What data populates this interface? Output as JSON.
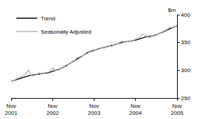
{
  "chart_data": {
    "type": "line",
    "y_label": "$m",
    "categories": [
      "Nov 2001",
      null,
      null,
      null,
      null,
      null,
      null,
      null,
      null,
      null,
      null,
      null,
      "Nov 2002",
      null,
      null,
      null,
      null,
      null,
      null,
      null,
      null,
      null,
      null,
      null,
      "Nov 2003",
      null,
      null,
      null,
      null,
      null,
      null,
      null,
      null,
      null,
      null,
      null,
      "Nov 2004",
      null,
      null,
      null,
      null,
      null,
      null,
      null,
      null,
      null,
      null,
      null,
      "Nov 2005"
    ],
    "series": [
      {
        "name": "Trend",
        "color": "#000000",
        "values": [
          280,
          282,
          284,
          286,
          288,
          290,
          291,
          292,
          293,
          294,
          295,
          296,
          298,
          300,
          302,
          305,
          308,
          312,
          316,
          320,
          324,
          328,
          331,
          334,
          336,
          338,
          340,
          341,
          343,
          344,
          346,
          348,
          350,
          351,
          352,
          353,
          354,
          356,
          358,
          360,
          361,
          362,
          364,
          366,
          369,
          372,
          375,
          378,
          380
        ]
      },
      {
        "name": "Seasonally Adjusted",
        "color": "#b4b4b4",
        "values": [
          279,
          283,
          286,
          288,
          292,
          300,
          290,
          291,
          295,
          293,
          296,
          297,
          304,
          299,
          301,
          306,
          307,
          313,
          315,
          322,
          325,
          327,
          333,
          333,
          335,
          339,
          340,
          342,
          342,
          346,
          345,
          349,
          352,
          350,
          353,
          352,
          356,
          358,
          365,
          362,
          358,
          363,
          365,
          366,
          370,
          373,
          378,
          376,
          381
        ]
      }
    ],
    "ylim": [
      250,
      400
    ],
    "yticks": [
      250,
      300,
      350,
      400
    ],
    "grid": false,
    "legend": "top left"
  }
}
